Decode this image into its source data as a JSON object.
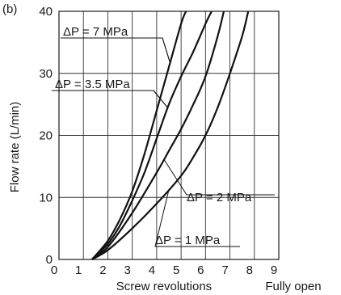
{
  "figure_label": "(b)",
  "chart_data": {
    "type": "line",
    "title": "",
    "xlabel": "Screw revolutions",
    "ylabel": "Flow rate (L/min)",
    "xlim": [
      0,
      9
    ],
    "ylim": [
      0,
      40
    ],
    "x_ticks": [
      0,
      1,
      2,
      3,
      4,
      5,
      6,
      7,
      8,
      9
    ],
    "y_ticks": [
      0,
      10,
      20,
      30,
      40
    ],
    "x_end_label": "Fully open",
    "grid": true,
    "series": [
      {
        "name": "ΔP = 7 MPa",
        "x": [
          1.35,
          2,
          2.5,
          3,
          3.5,
          4,
          4.5,
          5,
          5.2
        ],
        "y": [
          0,
          3,
          6.5,
          11,
          17,
          24,
          31,
          38,
          40
        ]
      },
      {
        "name": "ΔP = 3.5 MPa",
        "x": [
          1.35,
          2,
          2.5,
          3,
          3.5,
          4,
          4.5,
          5,
          5.5,
          6,
          6.25
        ],
        "y": [
          0,
          2.5,
          5.5,
          9.5,
          14,
          19.5,
          25,
          29.5,
          33.5,
          38,
          40
        ]
      },
      {
        "name": "ΔP = 2 MPa",
        "x": [
          1.35,
          2,
          3,
          4,
          4.5,
          5,
          5.5,
          6,
          6.5,
          6.75
        ],
        "y": [
          0,
          2,
          7.5,
          14,
          17.5,
          21,
          25,
          29.5,
          36,
          40
        ]
      },
      {
        "name": "ΔP = 1 MPa",
        "x": [
          1.35,
          2,
          3,
          4,
          5,
          5.5,
          6,
          6.5,
          7,
          7.5,
          7.75
        ],
        "y": [
          0,
          1.5,
          5,
          9,
          13.5,
          16.5,
          20,
          24.5,
          30,
          36,
          40
        ]
      }
    ],
    "annotations": [
      {
        "text": "ΔP = 7 MPa",
        "series": "ΔP = 7 MPa",
        "at_x": 4.55
      },
      {
        "text": "ΔP = 3.5 MPa",
        "series": "ΔP = 3.5 MPa",
        "at_x": 4.45
      },
      {
        "text": "ΔP = 2 MPa",
        "series": "ΔP = 2 MPa",
        "at_x": 4.3
      },
      {
        "text": "ΔP = 1 MPa",
        "series": "ΔP = 1 MPa",
        "at_x": 4.5
      }
    ]
  }
}
